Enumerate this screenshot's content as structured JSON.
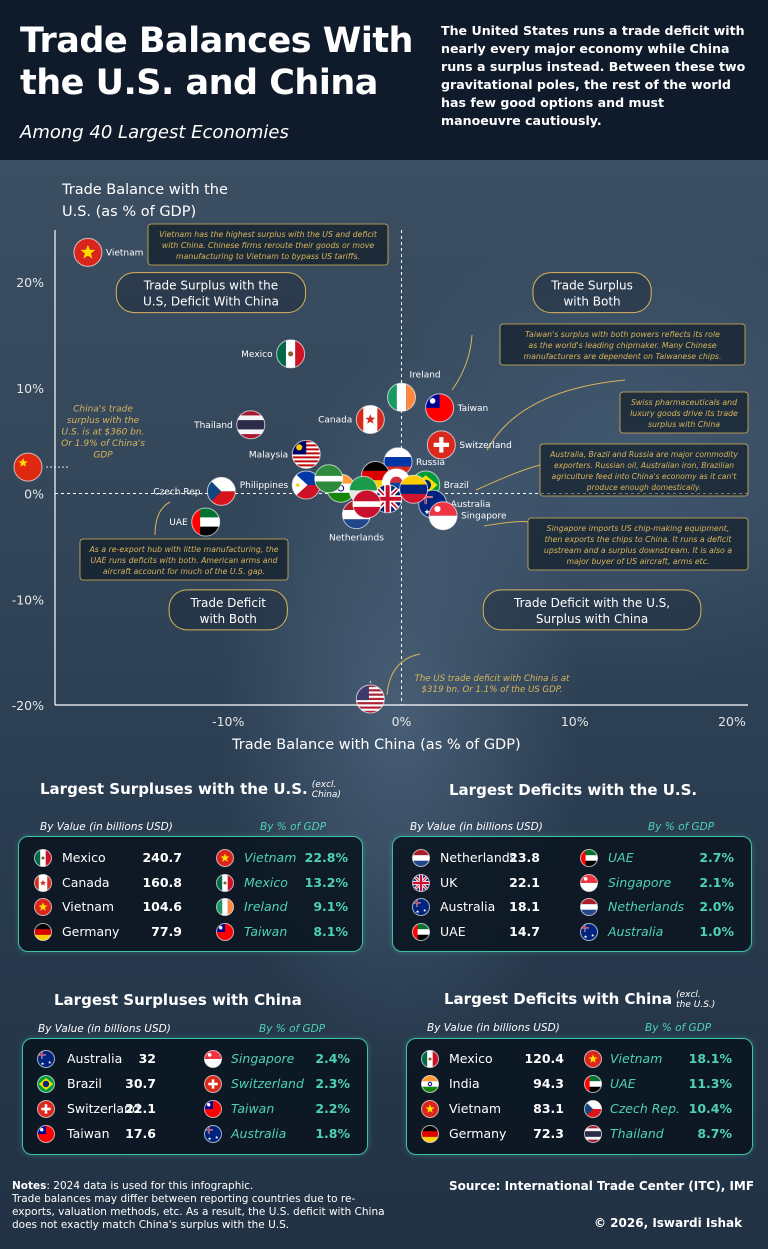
{
  "header": {
    "title": "Trade Balances With the U.S. and China",
    "subtitle": "Among 40 Largest Economies",
    "intro": "The United States runs a trade deficit with nearly every major economy while China runs a surplus instead. Between these two gravitational poles, the rest of the world has few good options and must manoeuvre cautiously."
  },
  "chart_data": {
    "type": "scatter",
    "ylabel_line1": "Trade Balance with the",
    "ylabel_line2": "U.S. (as % of GDP)",
    "xlabel": "Trade Balance with China (as % of GDP)",
    "xlim": [
      -20,
      20
    ],
    "ylim": [
      -20,
      25
    ],
    "xticks": [
      -10,
      0,
      10,
      20
    ],
    "yticks": [
      20,
      10,
      0,
      -10,
      -20
    ],
    "xtick_labels": [
      "-10%",
      "0%",
      "10%",
      "20%"
    ],
    "ytick_labels": [
      "20%",
      "10%",
      "0%",
      "-10%",
      "-20%"
    ],
    "points": [
      {
        "label": "Vietnam",
        "x": -18.1,
        "y": 22.8,
        "flag": "vietnam",
        "label_side": "right"
      },
      {
        "label": "Mexico",
        "x": -6.4,
        "y": 13.2,
        "flag": "mexico",
        "label_side": "left"
      },
      {
        "label": "Ireland",
        "x": 0.0,
        "y": 9.1,
        "flag": "ireland",
        "label_side": "top-right"
      },
      {
        "label": "Taiwan",
        "x": 2.2,
        "y": 8.1,
        "flag": "taiwan",
        "label_side": "right"
      },
      {
        "label": "Canada",
        "x": -1.8,
        "y": 7.0,
        "flag": "canada",
        "label_side": "left"
      },
      {
        "label": "Thailand",
        "x": -8.7,
        "y": 6.5,
        "flag": "thailand",
        "label_side": "left"
      },
      {
        "label": "Switzerland",
        "x": 2.3,
        "y": 4.6,
        "flag": "switzerland",
        "label_side": "right"
      },
      {
        "label": "Malaysia",
        "x": -5.5,
        "y": 3.7,
        "flag": "malaysia",
        "label_side": "left"
      },
      {
        "label": "Russia",
        "x": -0.2,
        "y": 3.0,
        "flag": "russia",
        "label_side": "right"
      },
      {
        "label": "Brazil",
        "x": 1.4,
        "y": 0.8,
        "flag": "brazil",
        "label_side": "right"
      },
      {
        "label": "Australia",
        "x": 1.8,
        "y": -1.0,
        "flag": "australia",
        "label_side": "right"
      },
      {
        "label": "Singapore",
        "x": 2.4,
        "y": -2.1,
        "flag": "singapore",
        "label_side": "right"
      },
      {
        "label": "Czech Rep.",
        "x": -10.4,
        "y": 0.2,
        "flag": "czech",
        "label_side": "left"
      },
      {
        "label": "Philippines",
        "x": -5.5,
        "y": 0.8,
        "flag": "philippines",
        "label_side": "left"
      },
      {
        "label": "UAE",
        "x": -11.3,
        "y": -2.7,
        "flag": "uae",
        "label_side": "left"
      },
      {
        "label": "Netherlands",
        "x": -2.6,
        "y": -2.0,
        "flag": "netherlands",
        "label_side": "bottom"
      },
      {
        "label": "",
        "x": -1.5,
        "y": 1.7,
        "flag": "germany"
      },
      {
        "label": "",
        "x": -0.3,
        "y": 1.0,
        "flag": "korea"
      },
      {
        "label": "",
        "x": -0.8,
        "y": -0.5,
        "flag": "uk"
      },
      {
        "label": "",
        "x": -3.5,
        "y": 0.5,
        "flag": "india"
      },
      {
        "label": "",
        "x": -4.2,
        "y": 1.4,
        "flag": "green"
      },
      {
        "label": "",
        "x": -2.2,
        "y": 0.3,
        "flag": "green2"
      },
      {
        "label": "",
        "x": 0.7,
        "y": 0.4,
        "flag": "venezuela"
      },
      {
        "label": "",
        "x": -2.0,
        "y": -1.0,
        "flag": "red"
      }
    ],
    "reference_points": [
      {
        "label": "China",
        "x": -20,
        "y": 2.5,
        "flag": "china"
      },
      {
        "label": "U.S.",
        "x": -1.8,
        "y": -20,
        "flag": "us"
      }
    ],
    "quadrant_labels": [
      {
        "line1": "Trade Surplus with the",
        "line2": "U.S, Deficit With China",
        "x": -11,
        "y": 19
      },
      {
        "line1": "Trade Surplus",
        "line2": "with Both",
        "x": 11,
        "y": 19
      },
      {
        "line1": "Trade Deficit",
        "line2": "with Both",
        "x": -10,
        "y": -11
      },
      {
        "line1": "Trade Deficit with the U.S,",
        "line2": "Surplus with China",
        "x": 11,
        "y": -11
      }
    ],
    "annotations": {
      "vietnam": [
        "Vietnam has the highest surplus with the US and deficit",
        "with China. Chinese firms reroute their goods or move",
        "manufacturing to Vietnam to bypass US tariffs."
      ],
      "china": [
        "China's trade",
        "surplus with the",
        "U.S. is at $360 bn.",
        "Or 1.9% of China's",
        "GDP"
      ],
      "taiwan": [
        "Taiwan's surplus with both powers reflects its role",
        "as the world's leading chipmaker. Many Chinese",
        "manufacturers are dependent on Taiwanese chips."
      ],
      "swiss": [
        "Swiss pharmaceuticals and",
        "luxury goods drive its trade",
        "surplus with China"
      ],
      "commodity": [
        "Australia, Brazil and Russia are major commodity",
        "exporters. Russian oil, Australian iron, Brazilian",
        "agriculture feed into China's economy as it can't",
        "produce enough domestically."
      ],
      "uae": [
        "As a re-export hub with little manufacturing, the",
        "UAE runs deficits with both. American arms and",
        "aircraft account for much of the U.S. gap."
      ],
      "singapore": [
        "Singapore imports US chip-making equipment,",
        "then exports the chips to China. It runs a deficit",
        "upstream and a surplus downstream. It is also a",
        "major buyer of US aircraft, arms etc."
      ],
      "us": [
        "The US trade deficit with China is at",
        "$319 bn. Or 1.1% of the US GDP."
      ]
    },
    "colors": {
      "accent": "#d9b45a",
      "teal": "#4fd1b5",
      "background": "#2c3e52"
    }
  },
  "tables": {
    "us_surplus": {
      "title": "Largest Surpluses with the U.S.",
      "note": [
        "(excl.",
        "China)"
      ],
      "sub_left": "By Value (in billions USD)",
      "sub_right": "By % of GDP",
      "left": [
        {
          "name": "Mexico",
          "value": "240.7",
          "flag": "mexico"
        },
        {
          "name": "Canada",
          "value": "160.8",
          "flag": "canada"
        },
        {
          "name": "Vietnam",
          "value": "104.6",
          "flag": "vietnam"
        },
        {
          "name": "Germany",
          "value": "77.9",
          "flag": "germany"
        }
      ],
      "right": [
        {
          "name": "Vietnam",
          "value": "22.8%",
          "flag": "vietnam"
        },
        {
          "name": "Mexico",
          "value": "13.2%",
          "flag": "mexico"
        },
        {
          "name": "Ireland",
          "value": "9.1%",
          "flag": "ireland"
        },
        {
          "name": "Taiwan",
          "value": "8.1%",
          "flag": "taiwan"
        }
      ]
    },
    "us_deficit": {
      "title": "Largest Deficits with the U.S.",
      "sub_left": "By Value (in billions USD)",
      "sub_right": "By % of GDP",
      "left": [
        {
          "name": "Netherlands",
          "value": "23.8",
          "flag": "netherlands"
        },
        {
          "name": "UK",
          "value": "22.1",
          "flag": "uk"
        },
        {
          "name": "Australia",
          "value": "18.1",
          "flag": "australia"
        },
        {
          "name": "UAE",
          "value": "14.7",
          "flag": "uae"
        }
      ],
      "right": [
        {
          "name": "UAE",
          "value": "2.7%",
          "flag": "uae"
        },
        {
          "name": "Singapore",
          "value": "2.1%",
          "flag": "singapore"
        },
        {
          "name": "Netherlands",
          "value": "2.0%",
          "flag": "netherlands"
        },
        {
          "name": "Australia",
          "value": "1.0%",
          "flag": "australia"
        }
      ]
    },
    "cn_surplus": {
      "title": "Largest Surpluses with China",
      "sub_left": "By Value (in billions USD)",
      "sub_right": "By % of GDP",
      "left": [
        {
          "name": "Australia",
          "value": "32",
          "flag": "australia"
        },
        {
          "name": "Brazil",
          "value": "30.7",
          "flag": "brazil"
        },
        {
          "name": "Switzerland",
          "value": "22.1",
          "flag": "switzerland"
        },
        {
          "name": "Taiwan",
          "value": "17.6",
          "flag": "taiwan"
        }
      ],
      "right": [
        {
          "name": "Singapore",
          "value": "2.4%",
          "flag": "singapore"
        },
        {
          "name": "Switzerland",
          "value": "2.3%",
          "flag": "switzerland"
        },
        {
          "name": "Taiwan",
          "value": "2.2%",
          "flag": "taiwan"
        },
        {
          "name": "Australia",
          "value": "1.8%",
          "flag": "australia"
        }
      ]
    },
    "cn_deficit": {
      "title": "Largest Deficits with China",
      "note": [
        "(excl.",
        "the U.S.)"
      ],
      "sub_left": "By Value (in billions USD)",
      "sub_right": "By % of GDP",
      "left": [
        {
          "name": "Mexico",
          "value": "120.4",
          "flag": "mexico"
        },
        {
          "name": "India",
          "value": "94.3",
          "flag": "india"
        },
        {
          "name": "Vietnam",
          "value": "83.1",
          "flag": "vietnam"
        },
        {
          "name": "Germany",
          "value": "72.3",
          "flag": "germany"
        }
      ],
      "right": [
        {
          "name": "Vietnam",
          "value": "18.1%",
          "flag": "vietnam"
        },
        {
          "name": "UAE",
          "value": "11.3%",
          "flag": "uae"
        },
        {
          "name": "Czech Rep.",
          "value": "10.4%",
          "flag": "czech"
        },
        {
          "name": "Thailand",
          "value": "8.7%",
          "flag": "thailand"
        }
      ]
    }
  },
  "footer": {
    "notes_label": "Notes",
    "notes_first": ": 2024 data is used for this infographic.",
    "notes_rest": "Trade balances may differ between reporting countries due to re-exports, valuation methods, etc. As a result, the U.S. deficit with China does not exactly match China's surplus with the U.S.",
    "source": "Source: International Trade Center (ITC), IMF",
    "copyright": "© 2026, Iswardi Ishak"
  }
}
